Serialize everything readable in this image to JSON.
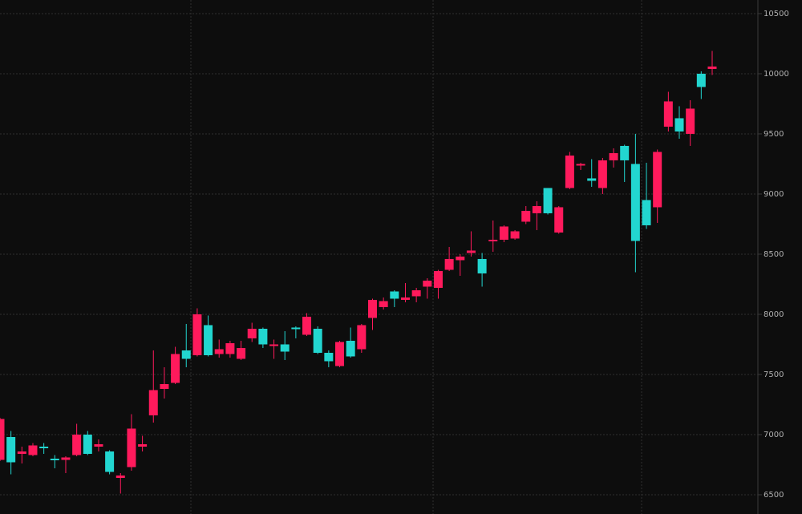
{
  "chart_data": {
    "type": "candlestick",
    "open": [
      6790,
      6980,
      6840,
      6830,
      6900,
      6800,
      6790,
      6830,
      7000,
      6900,
      6860,
      6640,
      6730,
      6900,
      7160,
      7380,
      7430,
      7700,
      7660,
      7910,
      7670,
      7670,
      7630,
      7800,
      7880,
      7740,
      7750,
      7890,
      7830,
      7880,
      7680,
      7570,
      7780,
      7710,
      7970,
      8060,
      8190,
      8120,
      8150,
      8230,
      8220,
      8370,
      8450,
      8510,
      8460,
      8610,
      8620,
      8630,
      8770,
      8840,
      9050,
      8680,
      9050,
      9240,
      9130,
      9050,
      9280,
      9400,
      9250,
      8950,
      8890,
      9560,
      9630,
      9500,
      10000,
      10040
    ],
    "high": [
      7140,
      7030,
      6900,
      6930,
      6930,
      6830,
      6820,
      7090,
      7030,
      6960,
      6870,
      6680,
      7170,
      6990,
      7700,
      7560,
      7730,
      7920,
      8050,
      7990,
      7790,
      7780,
      7780,
      7930,
      7890,
      7790,
      7860,
      7900,
      8010,
      7900,
      7700,
      7780,
      7890,
      7920,
      8130,
      8140,
      8200,
      8260,
      8220,
      8300,
      8370,
      8560,
      8500,
      8690,
      8510,
      8780,
      8740,
      8700,
      8900,
      8940,
      9050,
      8900,
      9350,
      9260,
      9290,
      9300,
      9380,
      9410,
      9500,
      9260,
      9370,
      9850,
      9730,
      9780,
      10020,
      10190
    ],
    "low": [
      6780,
      6670,
      6760,
      6820,
      6840,
      6720,
      6680,
      6820,
      6830,
      6860,
      6670,
      6510,
      6700,
      6860,
      7100,
      7300,
      7420,
      7560,
      7650,
      7650,
      7640,
      7640,
      7620,
      7770,
      7720,
      7630,
      7620,
      7800,
      7820,
      7670,
      7560,
      7560,
      7640,
      7680,
      7870,
      8040,
      8060,
      8100,
      8100,
      8130,
      8130,
      8360,
      8320,
      8480,
      8230,
      8520,
      8600,
      8620,
      8750,
      8700,
      8830,
      8670,
      9040,
      9200,
      9060,
      9000,
      9220,
      9100,
      8350,
      8710,
      8760,
      9520,
      9460,
      9400,
      9790,
      9990
    ],
    "close": [
      7130,
      6770,
      6860,
      6910,
      6890,
      6790,
      6810,
      7000,
      6840,
      6920,
      6690,
      6660,
      7050,
      6920,
      7370,
      7420,
      7670,
      7630,
      8000,
      7660,
      7710,
      7760,
      7720,
      7880,
      7750,
      7750,
      7690,
      7880,
      7980,
      7680,
      7610,
      7770,
      7650,
      7910,
      8120,
      8110,
      8130,
      8140,
      8200,
      8280,
      8360,
      8460,
      8480,
      8530,
      8340,
      8620,
      8730,
      8690,
      8860,
      8900,
      8840,
      8890,
      9320,
      9250,
      9110,
      9280,
      9340,
      9280,
      8610,
      8740,
      9350,
      9770,
      9520,
      9710,
      9890,
      10060
    ],
    "up_color": "#ff1a5c",
    "down_color": "#22d6d0",
    "ylim": [
      6340,
      10613
    ],
    "yticks": [
      6500,
      7000,
      7500,
      8000,
      8500,
      9000,
      9500,
      10000,
      10500
    ],
    "grid": true
  }
}
